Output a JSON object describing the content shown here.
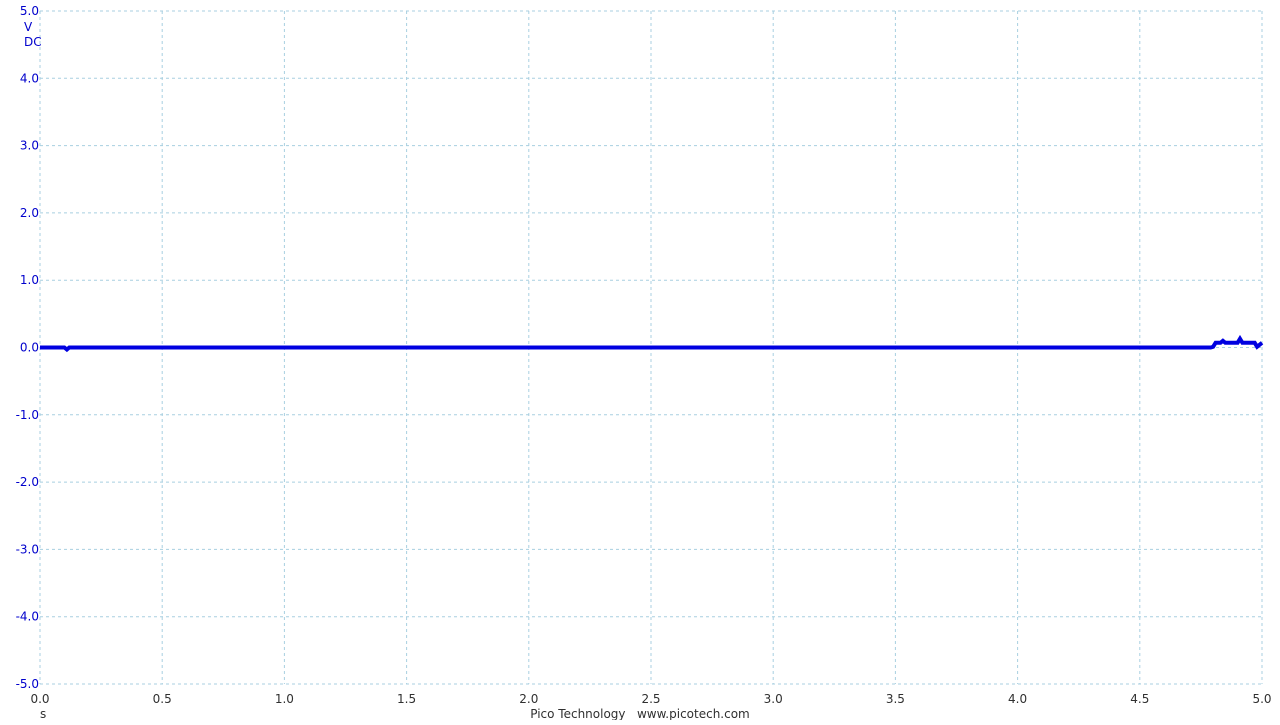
{
  "footer": {
    "credit": "Pico Technology   www.picotech.com"
  },
  "colors": {
    "trace": "#0000e0",
    "axis_labels": "#0000cc",
    "x_labels": "#303030",
    "grid": "#a8cfe0"
  },
  "chart_data": {
    "type": "line",
    "title": "",
    "y_units": [
      "V",
      "DC"
    ],
    "x_unit": "s",
    "xlim": [
      0.0,
      5.0
    ],
    "ylim": [
      -5.0,
      5.0
    ],
    "x_ticks": [
      "0.0",
      "0.5",
      "1.0",
      "1.5",
      "2.0",
      "2.5",
      "3.0",
      "3.5",
      "4.0",
      "4.5",
      "5.0"
    ],
    "y_ticks": [
      "5.0",
      "4.0",
      "3.0",
      "2.0",
      "1.0",
      "0.0",
      "-1.0",
      "-2.0",
      "-3.0",
      "-4.0",
      "-5.0"
    ],
    "grid": true,
    "series": [
      {
        "x": [
          0.0,
          0.1,
          0.11,
          0.12,
          0.5,
          1.0,
          1.5,
          2.0,
          2.5,
          3.0,
          3.5,
          4.0,
          4.5,
          4.79,
          4.8,
          4.81,
          4.82,
          4.83,
          4.84,
          4.85,
          4.86,
          4.9,
          4.91,
          4.92,
          4.95,
          4.97,
          4.98,
          5.0
        ],
        "y": [
          0.0,
          0.0,
          -0.03,
          0.0,
          0.0,
          0.0,
          0.0,
          0.0,
          0.0,
          0.0,
          0.0,
          0.0,
          0.0,
          0.0,
          0.01,
          0.07,
          0.07,
          0.07,
          0.1,
          0.07,
          0.07,
          0.07,
          0.13,
          0.07,
          0.07,
          0.07,
          0.01,
          0.07
        ]
      }
    ]
  }
}
